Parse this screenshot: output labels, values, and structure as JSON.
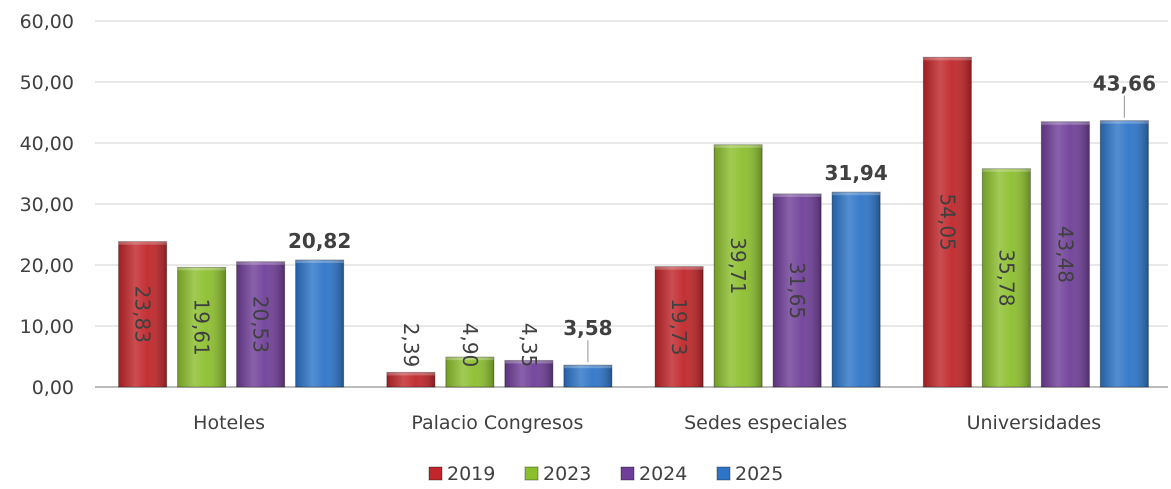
{
  "chart_data": {
    "type": "bar",
    "categories": [
      "Hoteles",
      "Palacio Congresos",
      "Sedes especiales",
      "Universidades"
    ],
    "series": [
      {
        "name": "2019",
        "color": "#c0262a",
        "values": [
          23.83,
          2.39,
          19.73,
          54.05
        ],
        "labels": [
          "23,83",
          "2,39",
          "19,73",
          "54,05"
        ]
      },
      {
        "name": "2023",
        "color": "#8cbf2e",
        "values": [
          19.61,
          4.9,
          39.71,
          35.78
        ],
        "labels": [
          "19,61",
          "4,90",
          "39,71",
          "35,78"
        ]
      },
      {
        "name": "2024",
        "color": "#6f3f98",
        "values": [
          20.53,
          4.35,
          31.65,
          43.48
        ],
        "labels": [
          "20,53",
          "4,35",
          "31,65",
          "43,48"
        ]
      },
      {
        "name": "2025",
        "color": "#2e75c8",
        "values": [
          20.82,
          3.58,
          31.94,
          43.66
        ],
        "labels": [
          "20,82",
          "3,58",
          "31,94",
          "43,66"
        ]
      }
    ],
    "ylim": [
      0,
      60
    ],
    "yticks": [
      0,
      10,
      20,
      30,
      40,
      50,
      60
    ],
    "ytick_labels": [
      "0,00",
      "10,00",
      "20,00",
      "30,00",
      "40,00",
      "50,00",
      "60,00"
    ],
    "grid": true,
    "legend_position": "bottom",
    "xlabel": "",
    "ylabel": "",
    "title": ""
  }
}
